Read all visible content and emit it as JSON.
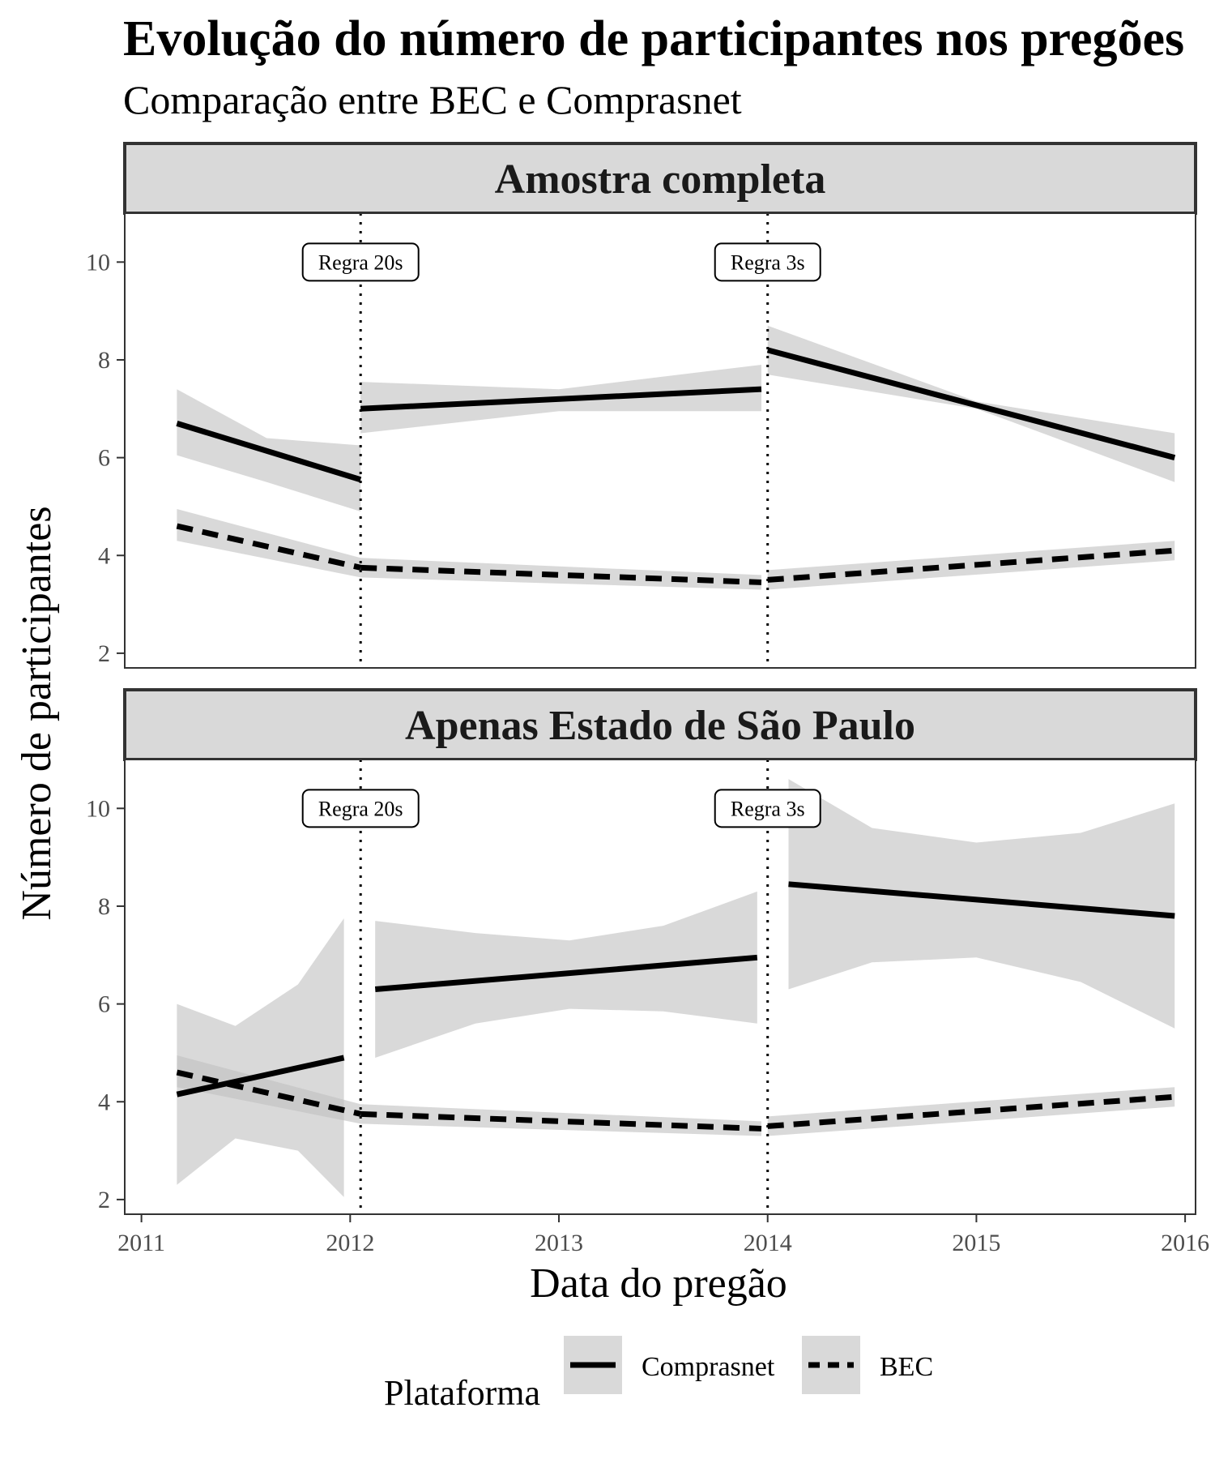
{
  "chart_data": {
    "type": "line",
    "title": "Evolução do número de participantes nos pregões",
    "subtitle": "Comparação entre BEC e Comprasnet",
    "xlabel": "Data do pregão",
    "ylabel": "Número de participantes",
    "xlim": [
      2010.92,
      2016.05
    ],
    "ylim": [
      1.7,
      11.0
    ],
    "x_ticks": [
      2011,
      2012,
      2013,
      2014,
      2015,
      2016
    ],
    "y_ticks": [
      2,
      4,
      6,
      8,
      10
    ],
    "legend": {
      "title": "Plataforma",
      "position": "bottom",
      "entries": [
        {
          "label": "Comprasnet",
          "linetype": "solid"
        },
        {
          "label": "BEC",
          "linetype": "dashed"
        }
      ]
    },
    "colors": {
      "line": "#000000",
      "ribbon": "#bfbfbf",
      "strip_fill": "#d9d9d9",
      "strip_border": "#333333",
      "vline": "#000000"
    },
    "vlines": [
      {
        "x": 2012.05,
        "label": "Regra 20s",
        "label_y": 10
      },
      {
        "x": 2014.0,
        "label": "Regra 3s",
        "label_y": 10
      }
    ],
    "panels": [
      {
        "strip": "Amostra completa",
        "series": [
          {
            "name": "Comprasnet",
            "linetype": "solid",
            "segments": [
              {
                "x": [
                  2011.17,
                  2012.05
                ],
                "y": [
                  6.7,
                  5.55
                ],
                "ribbon": {
                  "x": [
                    2011.17,
                    2011.6,
                    2012.05
                  ],
                  "lower": [
                    6.05,
                    5.5,
                    4.9
                  ],
                  "upper": [
                    7.4,
                    6.4,
                    6.25
                  ]
                }
              },
              {
                "x": [
                  2012.05,
                  2013.97
                ],
                "y": [
                  7.0,
                  7.4
                ],
                "ribbon": {
                  "x": [
                    2012.05,
                    2013.0,
                    2013.97
                  ],
                  "lower": [
                    6.5,
                    6.95,
                    6.95
                  ],
                  "upper": [
                    7.55,
                    7.4,
                    7.9
                  ]
                }
              },
              {
                "x": [
                  2014.0,
                  2015.95
                ],
                "y": [
                  8.2,
                  6.0
                ],
                "ribbon": {
                  "x": [
                    2014.0,
                    2015.0,
                    2015.95
                  ],
                  "lower": [
                    7.7,
                    7.0,
                    5.5
                  ],
                  "upper": [
                    8.7,
                    7.15,
                    6.5
                  ]
                }
              }
            ]
          },
          {
            "name": "BEC",
            "linetype": "dashed",
            "segments": [
              {
                "x": [
                  2011.17,
                  2012.05
                ],
                "y": [
                  4.6,
                  3.75
                ],
                "ribbon": {
                  "x": [
                    2011.17,
                    2012.05
                  ],
                  "lower": [
                    4.3,
                    3.55
                  ],
                  "upper": [
                    4.95,
                    3.95
                  ]
                }
              },
              {
                "x": [
                  2012.05,
                  2013.97
                ],
                "y": [
                  3.75,
                  3.45
                ],
                "ribbon": {
                  "x": [
                    2012.05,
                    2013.97
                  ],
                  "lower": [
                    3.55,
                    3.3
                  ],
                  "upper": [
                    3.95,
                    3.6
                  ]
                }
              },
              {
                "x": [
                  2014.0,
                  2015.95
                ],
                "y": [
                  3.5,
                  4.1
                ],
                "ribbon": {
                  "x": [
                    2014.0,
                    2015.95
                  ],
                  "lower": [
                    3.3,
                    3.9
                  ],
                  "upper": [
                    3.7,
                    4.3
                  ]
                }
              }
            ]
          }
        ]
      },
      {
        "strip": "Apenas Estado de São Paulo",
        "series": [
          {
            "name": "Comprasnet",
            "linetype": "solid",
            "segments": [
              {
                "x": [
                  2011.17,
                  2011.97
                ],
                "y": [
                  4.15,
                  4.9
                ],
                "ribbon": {
                  "x": [
                    2011.17,
                    2011.45,
                    2011.75,
                    2011.97
                  ],
                  "lower": [
                    2.3,
                    3.25,
                    3.0,
                    2.05
                  ],
                  "upper": [
                    6.0,
                    5.55,
                    6.4,
                    7.75
                  ]
                }
              },
              {
                "x": [
                  2012.12,
                  2013.95
                ],
                "y": [
                  6.3,
                  6.95
                ],
                "ribbon": {
                  "x": [
                    2012.12,
                    2012.6,
                    2013.05,
                    2013.5,
                    2013.95
                  ],
                  "lower": [
                    4.9,
                    5.6,
                    5.9,
                    5.85,
                    5.6
                  ],
                  "upper": [
                    7.7,
                    7.45,
                    7.3,
                    7.6,
                    8.3
                  ]
                }
              },
              {
                "x": [
                  2014.1,
                  2015.95
                ],
                "y": [
                  8.45,
                  7.8
                ],
                "ribbon": {
                  "x": [
                    2014.1,
                    2014.5,
                    2015.0,
                    2015.5,
                    2015.95
                  ],
                  "lower": [
                    6.3,
                    6.85,
                    6.95,
                    6.45,
                    5.5
                  ],
                  "upper": [
                    10.6,
                    9.6,
                    9.3,
                    9.5,
                    10.1
                  ]
                }
              }
            ]
          },
          {
            "name": "BEC",
            "linetype": "dashed",
            "segments": [
              {
                "x": [
                  2011.17,
                  2012.05
                ],
                "y": [
                  4.6,
                  3.75
                ],
                "ribbon": {
                  "x": [
                    2011.17,
                    2012.05
                  ],
                  "lower": [
                    4.3,
                    3.55
                  ],
                  "upper": [
                    4.95,
                    3.95
                  ]
                }
              },
              {
                "x": [
                  2012.05,
                  2013.97
                ],
                "y": [
                  3.75,
                  3.45
                ],
                "ribbon": {
                  "x": [
                    2012.05,
                    2013.97
                  ],
                  "lower": [
                    3.55,
                    3.3
                  ],
                  "upper": [
                    3.95,
                    3.6
                  ]
                }
              },
              {
                "x": [
                  2014.0,
                  2015.95
                ],
                "y": [
                  3.5,
                  4.1
                ],
                "ribbon": {
                  "x": [
                    2014.0,
                    2015.95
                  ],
                  "lower": [
                    3.3,
                    3.9
                  ],
                  "upper": [
                    3.7,
                    4.3
                  ]
                }
              }
            ]
          }
        ]
      }
    ]
  }
}
